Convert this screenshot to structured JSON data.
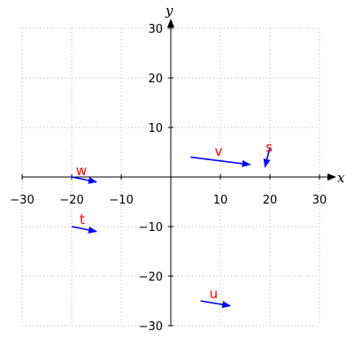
{
  "axes": {
    "x_label": "x",
    "y_label": "y",
    "x_range": [
      -30,
      30
    ],
    "y_range": [
      -30,
      30
    ],
    "tick_step": 10,
    "grid": true,
    "grid_style": "dotted"
  },
  "vector_color": "#0000ff",
  "label_color": "#ff0000",
  "vectors": [
    {
      "label": "v",
      "tail": [
        4,
        4
      ],
      "head": [
        16,
        2.5
      ]
    },
    {
      "label": "s",
      "tail": [
        20,
        6
      ],
      "head": [
        19,
        2
      ]
    },
    {
      "label": "w",
      "tail": [
        -20,
        0
      ],
      "head": [
        -15,
        -1
      ]
    },
    {
      "label": "t",
      "tail": [
        -20,
        -10
      ],
      "head": [
        -15,
        -11
      ]
    },
    {
      "label": "u",
      "tail": [
        6,
        -25
      ],
      "head": [
        12,
        -26
      ]
    }
  ]
}
